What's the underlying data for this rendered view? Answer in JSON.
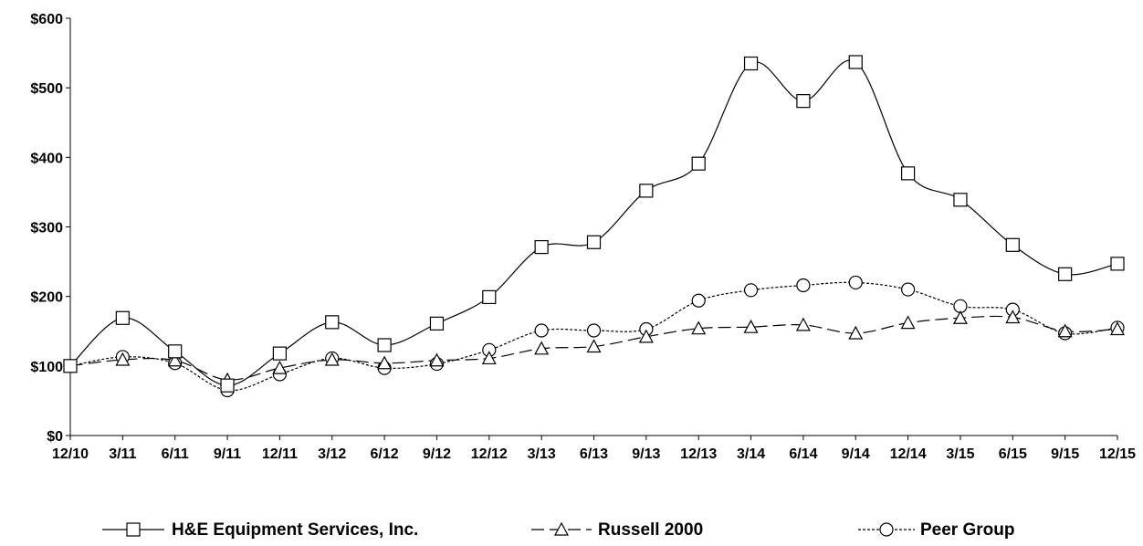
{
  "chart_data": {
    "type": "line",
    "title": "",
    "xlabel": "",
    "ylabel": "",
    "categories": [
      "12/10",
      "3/11",
      "6/11",
      "9/11",
      "12/11",
      "3/12",
      "6/12",
      "9/12",
      "12/12",
      "3/13",
      "6/13",
      "9/13",
      "12/13",
      "3/14",
      "6/14",
      "9/14",
      "12/14",
      "3/15",
      "6/15",
      "9/15",
      "12/15"
    ],
    "yticks": [
      "$0",
      "$100",
      "$200",
      "$300",
      "$400",
      "$500",
      "$600"
    ],
    "ylim": [
      0,
      600
    ],
    "grid": false,
    "legend_position": "bottom",
    "series": [
      {
        "name": "H&E Equipment Services, Inc.",
        "marker": "square",
        "dash": "solid",
        "values": [
          100,
          169,
          121,
          72,
          118,
          163,
          130,
          161,
          199,
          271,
          278,
          352,
          391,
          535,
          481,
          537,
          377,
          339,
          274,
          232,
          247
        ]
      },
      {
        "name": "Russell 2000",
        "marker": "triangle",
        "dash": "dashed",
        "values": [
          100,
          109,
          108,
          80,
          97,
          109,
          104,
          108,
          111,
          125,
          128,
          142,
          154,
          156,
          159,
          147,
          162,
          169,
          170,
          150,
          153
        ]
      },
      {
        "name": "Peer Group",
        "marker": "circle",
        "dash": "dotted",
        "values": [
          100,
          113,
          104,
          65,
          88,
          111,
          97,
          103,
          123,
          151,
          151,
          153,
          194,
          209,
          216,
          220,
          210,
          186,
          181,
          147,
          155
        ]
      }
    ]
  }
}
